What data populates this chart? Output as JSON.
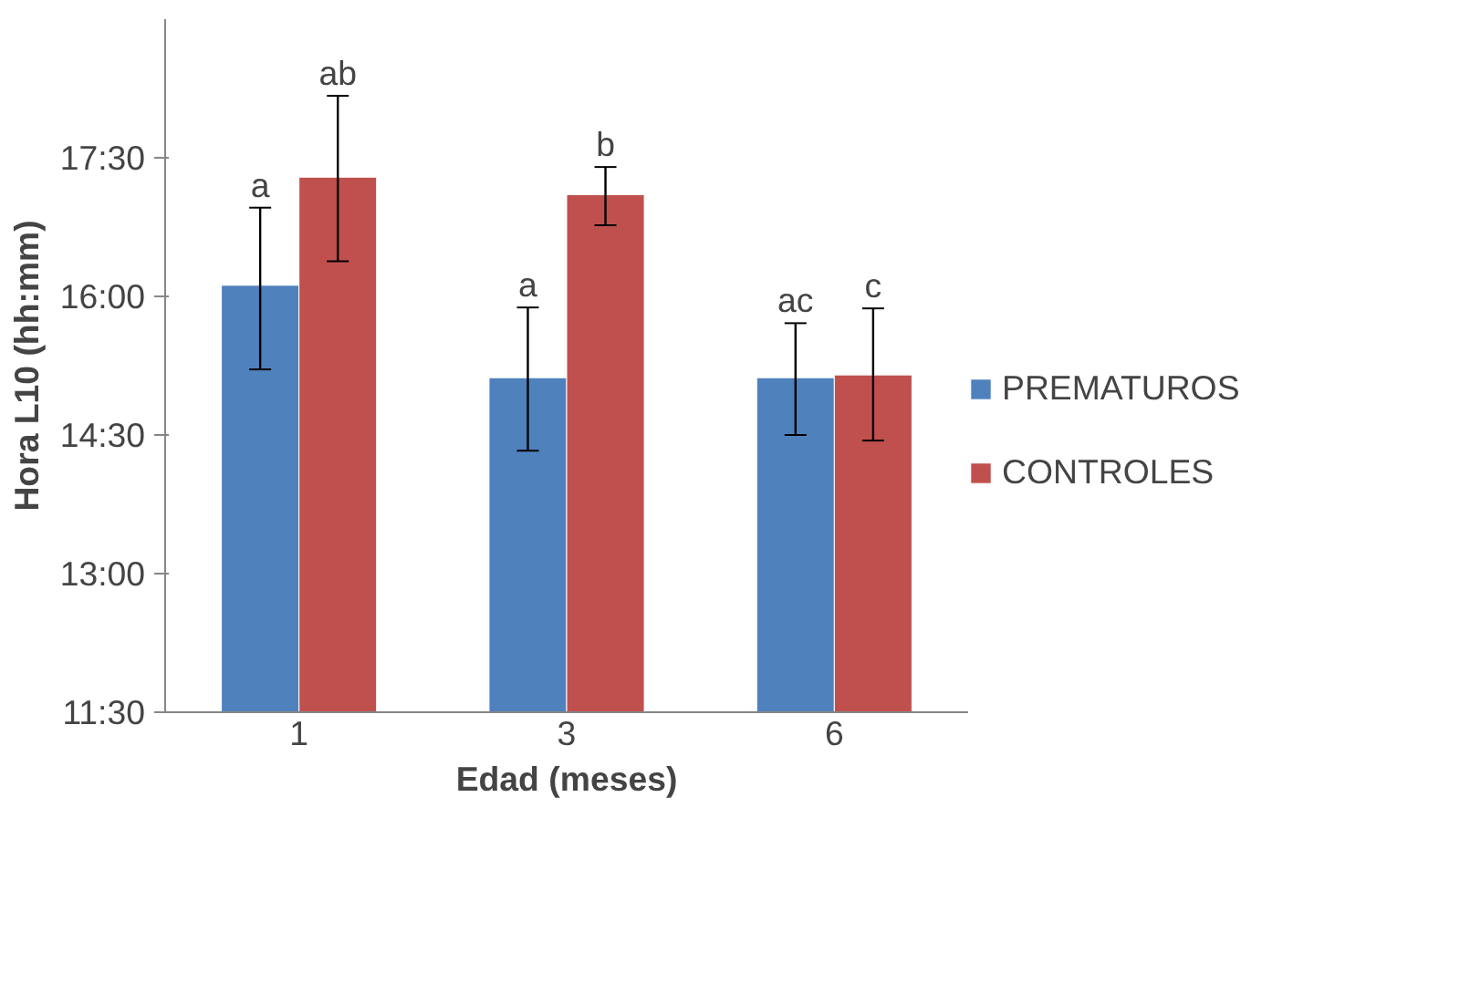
{
  "chart_data": {
    "type": "bar",
    "xlabel": "Edad (meses)",
    "ylabel": "Hora L10 (hh:mm)",
    "categories": [
      "1",
      "3",
      "6"
    ],
    "series": [
      {
        "name": "PREMATUROS",
        "color": "#4f81bd",
        "values": [
          16.12,
          15.12,
          15.12
        ],
        "errors": [
          [
            15.21,
            16.96
          ],
          [
            14.33,
            15.88
          ],
          [
            14.5,
            15.71
          ]
        ]
      },
      {
        "name": "CONTROLES",
        "color": "#c0504d",
        "values": [
          17.29,
          17.1,
          15.15
        ],
        "errors": [
          [
            16.38,
            18.17
          ],
          [
            16.77,
            17.4
          ],
          [
            14.44,
            15.87
          ]
        ]
      }
    ],
    "ylim": [
      11.5,
      19
    ],
    "yticks": [
      {
        "value": 11.5,
        "label": "11:30"
      },
      {
        "value": 13,
        "label": "13:00"
      },
      {
        "value": 14.5,
        "label": "14:30"
      },
      {
        "value": 16,
        "label": "16:00"
      },
      {
        "value": 17.5,
        "label": "17:30"
      }
    ],
    "annotations": [
      "a",
      "ab",
      "a",
      "b",
      "ac",
      "c"
    ],
    "grid": false,
    "legend": "right"
  }
}
